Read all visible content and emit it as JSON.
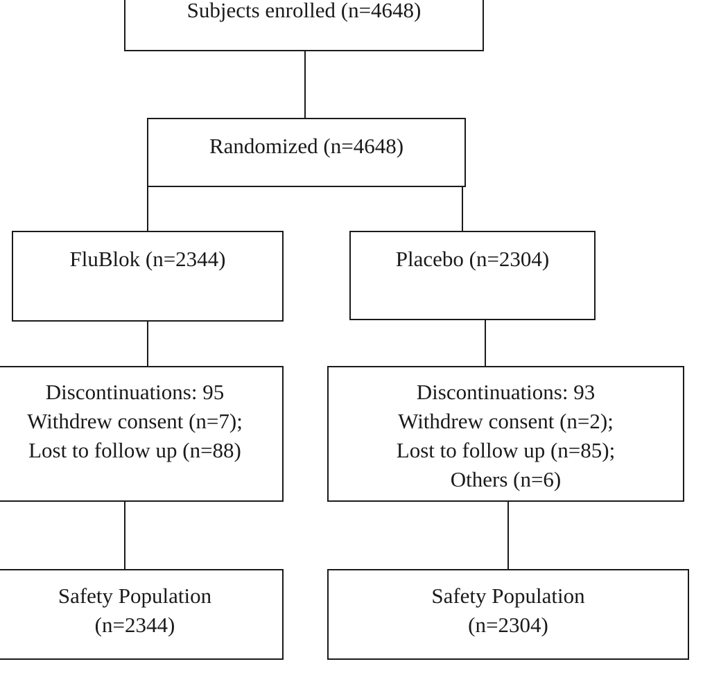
{
  "flowchart": {
    "enrolled": {
      "lines": [
        "Subjects enrolled (n=4648)"
      ]
    },
    "randomized": {
      "lines": [
        "Randomized (n=4648)"
      ]
    },
    "flublok_arm": {
      "lines": [
        "FluBlok (n=2344)"
      ]
    },
    "placebo_arm": {
      "lines": [
        "Placebo (n=2304)"
      ]
    },
    "flublok_discontinuations": {
      "lines": [
        "Discontinuations: 95",
        "Withdrew consent (n=7);",
        "Lost to follow up (n=88)"
      ]
    },
    "placebo_discontinuations": {
      "lines": [
        "Discontinuations: 93",
        "Withdrew consent (n=2);",
        "Lost to follow up (n=85);",
        "Others (n=6)"
      ]
    },
    "flublok_safety": {
      "lines": [
        "Safety Population",
        "(n=2344)"
      ]
    },
    "placebo_safety": {
      "lines": [
        "Safety Population",
        "(n=2304)"
      ]
    }
  },
  "colors": {
    "stroke": "#1a1a1a",
    "background": "#ffffff"
  }
}
